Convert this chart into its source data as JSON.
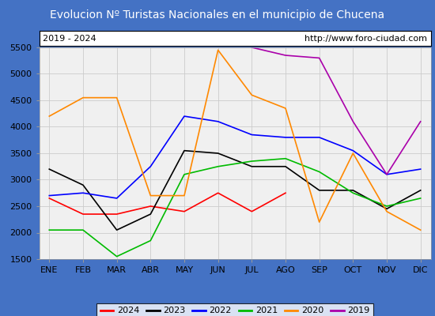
{
  "title": "Evolucion Nº Turistas Nacionales en el municipio de Chucena",
  "subtitle_left": "2019 - 2024",
  "subtitle_right": "http://www.foro-ciudad.com",
  "months": [
    "ENE",
    "FEB",
    "MAR",
    "ABR",
    "MAY",
    "JUN",
    "JUL",
    "AGO",
    "SEP",
    "OCT",
    "NOV",
    "DIC"
  ],
  "ylim": [
    1500,
    5500
  ],
  "yticks": [
    1500,
    2000,
    2500,
    3000,
    3500,
    4000,
    4500,
    5000,
    5500
  ],
  "series": {
    "2024": {
      "color": "#ff0000",
      "data": [
        2650,
        2350,
        2350,
        2500,
        2400,
        2750,
        2400,
        2750,
        null,
        null,
        null,
        null
      ]
    },
    "2023": {
      "color": "#000000",
      "data": [
        3200,
        2900,
        2050,
        2350,
        3550,
        3500,
        3250,
        3250,
        2800,
        2800,
        2450,
        2800
      ]
    },
    "2022": {
      "color": "#0000ff",
      "data": [
        2700,
        2750,
        2650,
        3250,
        4200,
        4100,
        3850,
        3800,
        3800,
        3550,
        3100,
        3200
      ]
    },
    "2021": {
      "color": "#00bb00",
      "data": [
        2050,
        2050,
        1550,
        1850,
        3100,
        3250,
        3350,
        3400,
        3150,
        2750,
        2500,
        2650
      ]
    },
    "2020": {
      "color": "#ff8800",
      "data": [
        4200,
        4550,
        4550,
        2700,
        2700,
        5450,
        4600,
        4350,
        2200,
        3500,
        2400,
        2050
      ]
    },
    "2019": {
      "color": "#aa00aa",
      "data": [
        null,
        null,
        null,
        null,
        null,
        null,
        5500,
        5350,
        5300,
        4100,
        3100,
        4100
      ]
    }
  },
  "title_bg_color": "#4472c4",
  "title_color": "#ffffff",
  "outer_bg_color": "#4472c4",
  "inner_bg_color": "#f0f0f0",
  "legend_order": [
    "2024",
    "2023",
    "2022",
    "2021",
    "2020",
    "2019"
  ],
  "title_fontsize": 10,
  "subtitle_fontsize": 8,
  "tick_fontsize": 8
}
